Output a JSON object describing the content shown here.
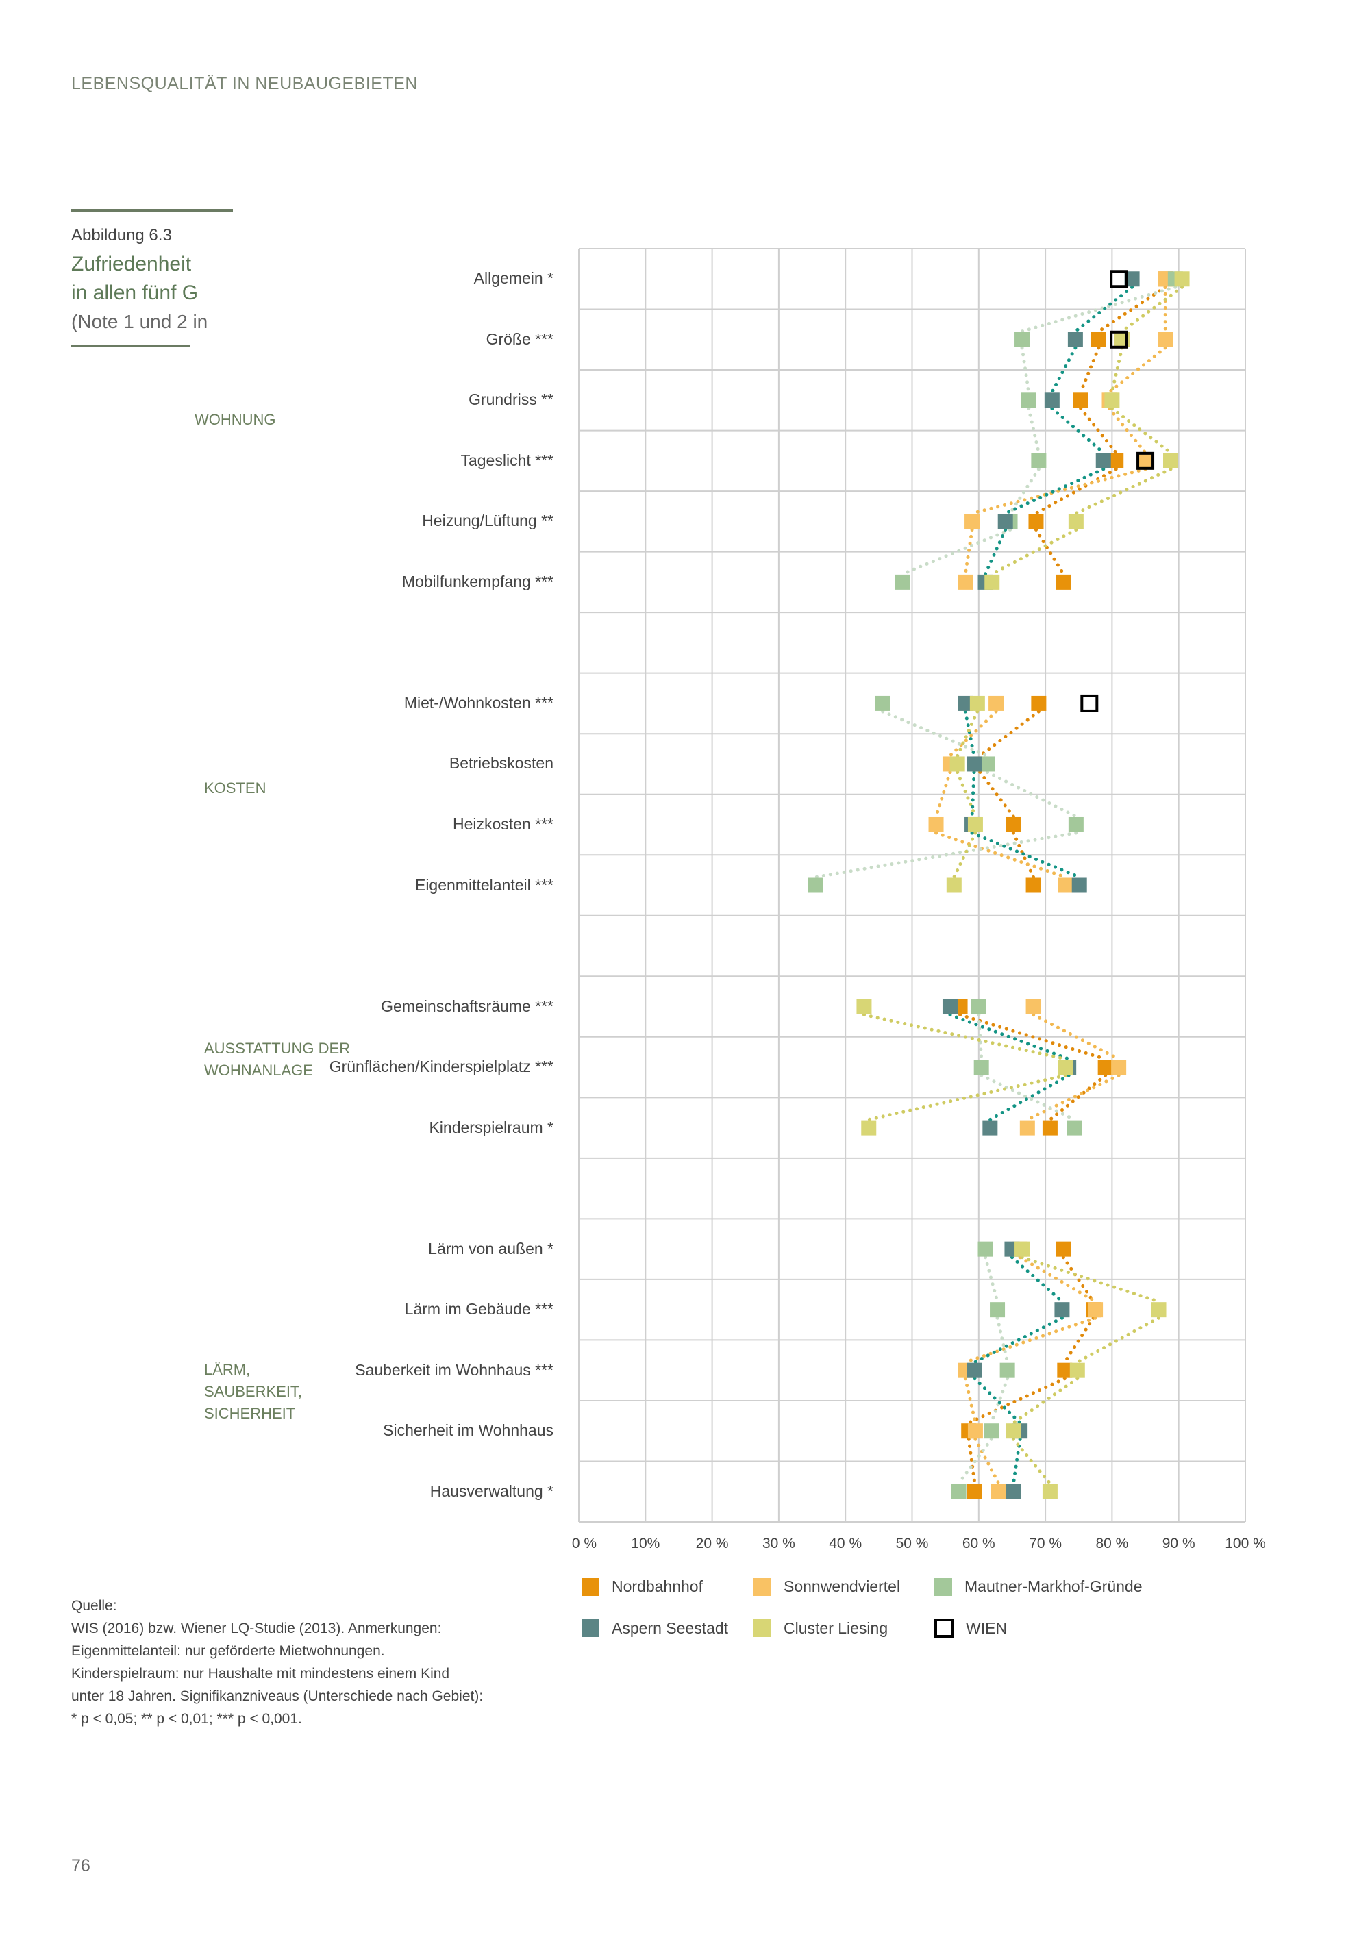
{
  "header": "LEBENSQUALITÄT IN NEUBAUGEBIETEN",
  "figure": {
    "number": "Abbildung 6.3",
    "title_line1": "Zufriedenheit",
    "title_line2": "in allen fünf G",
    "note": "(Note 1 und 2 in"
  },
  "sections": {
    "wohnung": "WOHNUNG",
    "kosten": "KOSTEN",
    "ausstattung_1": "AUSSTATTUNG DER",
    "ausstattung_2": "WOHNANLAGE",
    "laerm_1": "LÄRM,",
    "laerm_2": "SAUBERKEIT,",
    "laerm_3": "SICHERHEIT"
  },
  "chart_data": {
    "type": "scatter",
    "orientation": "horizontal dot plot, categories on y-axis",
    "categories": [
      "Allgemein *",
      "Größe ***",
      "Grundriss **",
      "Tageslicht ***",
      "Heizung/Lüftung **",
      "Mobilfunkempfang ***",
      "",
      "Miet-/Wohnkosten ***",
      "Betriebskosten",
      "Heizkosten ***",
      "Eigenmittelanteil ***",
      "",
      "Gemeinschaftsräume ***",
      "Grünflächen/Kinderspielplatz ***",
      "Kinderspielraum *",
      "",
      "Lärm von außen *",
      "Lärm im Gebäude ***",
      "Sauberkeit im Wohnhaus ***",
      "Sicherheit im Wohnhaus",
      "Hausverwaltung *"
    ],
    "x_ticks": [
      "0 %",
      "10%",
      "20 %",
      "30 %",
      "40 %",
      "50 %",
      "60 %",
      "70 %",
      "80 %",
      "90 %",
      "100 %"
    ],
    "xlim": [
      0,
      100
    ],
    "grid": true,
    "legend_position": "bottom",
    "series": [
      {
        "name": "Nordbahnhof",
        "color": "#E8920A",
        "line_color": "#E0890A",
        "connected": true,
        "values": [
          88,
          78,
          75.3,
          80.6,
          68.6,
          72.7,
          null,
          69,
          60.2,
          65.2,
          68.2,
          null,
          57.2,
          79,
          70.7,
          null,
          72.7,
          77.2,
          72.9,
          58.5,
          59.4
        ]
      },
      {
        "name": "Sonnwendviertel",
        "color": "#F9C264",
        "line_color": "#F2B850",
        "connected": true,
        "values": [
          88,
          88,
          79.6,
          85,
          59,
          58,
          null,
          62.6,
          55.7,
          53.6,
          73,
          null,
          68.2,
          81,
          67.3,
          null,
          66.2,
          77.5,
          58,
          59.5,
          63
        ]
      },
      {
        "name": "Mautner-Markhof-Gründe",
        "color": "#A3C89A",
        "line_color": "#C9DCC8",
        "connected": true,
        "values": [
          89.5,
          66.5,
          67.5,
          69,
          64.7,
          48.6,
          null,
          45.6,
          61.3,
          74.6,
          35.5,
          null,
          60,
          60.4,
          74.4,
          null,
          61,
          62.8,
          64.3,
          61.9,
          57
        ]
      },
      {
        "name": "Aspern Seestadt",
        "color": "#5B8585",
        "line_color": "#149485",
        "connected": true,
        "values": [
          83,
          74.5,
          71,
          78.7,
          64,
          61,
          null,
          58,
          59.3,
          59,
          75.1,
          null,
          55.7,
          73.5,
          61.7,
          null,
          65,
          72.5,
          59.4,
          66.2,
          65.2
        ]
      },
      {
        "name": "Cluster Liesing",
        "color": "#D8D675",
        "line_color": "#CFCB62",
        "connected": true,
        "values": [
          90.5,
          81.5,
          80,
          88.8,
          74.6,
          62,
          null,
          59.8,
          56.8,
          59.5,
          56.3,
          null,
          42.8,
          73,
          43.5,
          null,
          66.5,
          87,
          74.8,
          65.2,
          70.7
        ]
      },
      {
        "name": "WIEN",
        "color": "#000000",
        "outline": true,
        "connected": false,
        "values": [
          81,
          81,
          null,
          85,
          null,
          null,
          null,
          76.6,
          null,
          null,
          null,
          null,
          null,
          null,
          null,
          null,
          null,
          null,
          null,
          null,
          null
        ]
      }
    ]
  },
  "footnote": {
    "l1": "Quelle:",
    "l2": "WIS (2016) bzw. Wiener LQ-Studie (2013). Anmerkungen:",
    "l3": "Eigenmittelanteil: nur geförderte Mietwohnungen.",
    "l4": "Kinderspielraum: nur Haushalte mit mindestens einem Kind",
    "l5": "unter 18 Jahren. Signifikanzniveaus (Unterschiede nach Gebiet):",
    "l6": "* p < 0,05; ** p < 0,01; *** p < 0,001."
  },
  "page_number": "76"
}
